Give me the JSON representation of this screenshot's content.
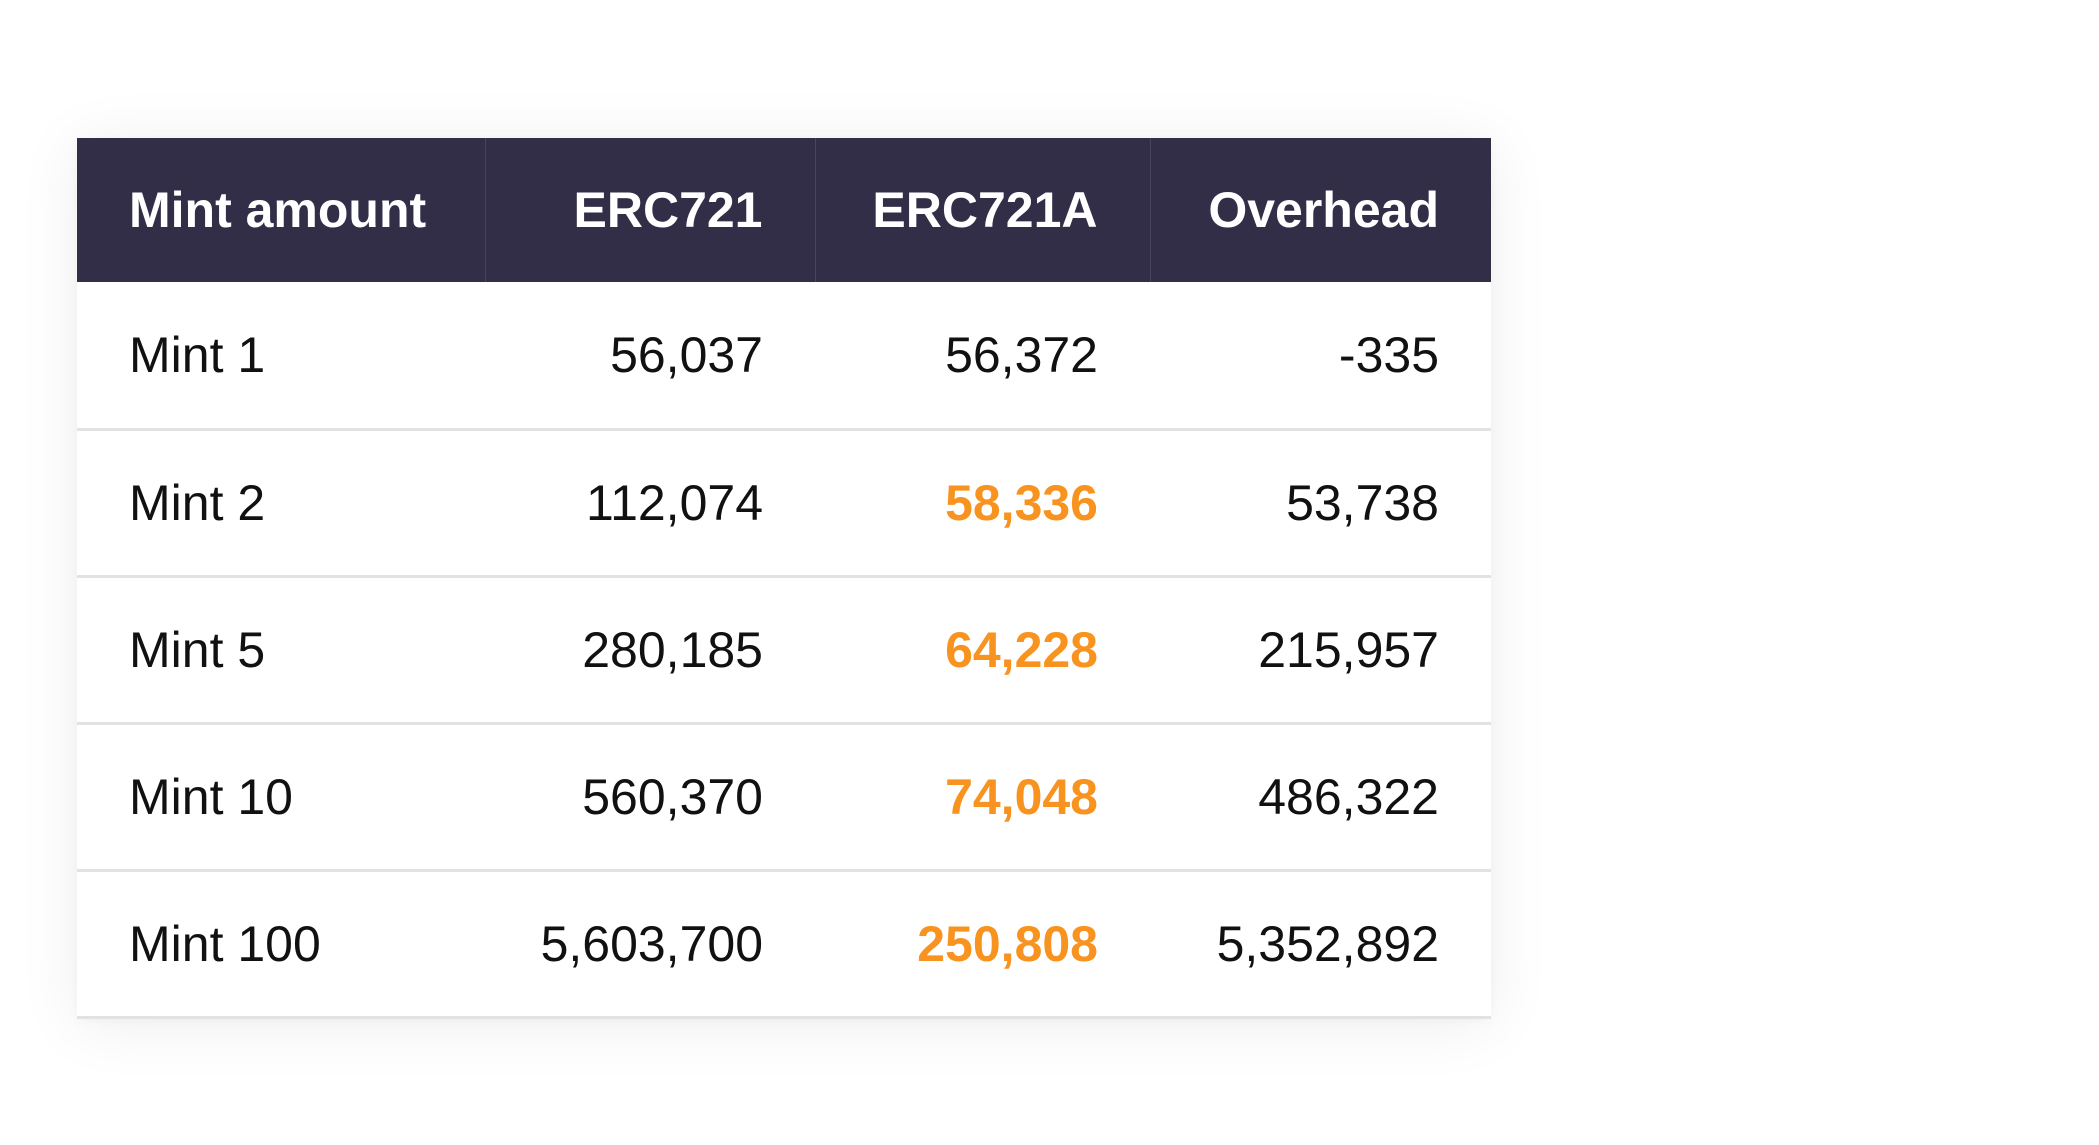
{
  "table": {
    "headers": [
      "Mint amount",
      "ERC721",
      "ERC721A",
      "Overhead"
    ],
    "rows": [
      {
        "label": "Mint 1",
        "erc721": "56,037",
        "erc721a": "56,372",
        "overhead": "-335",
        "highlight": false
      },
      {
        "label": "Mint 2",
        "erc721": "112,074",
        "erc721a": "58,336",
        "overhead": "53,738",
        "highlight": true
      },
      {
        "label": "Mint 5",
        "erc721": "280,185",
        "erc721a": "64,228",
        "overhead": "215,957",
        "highlight": true
      },
      {
        "label": "Mint 10",
        "erc721": "560,370",
        "erc721a": "74,048",
        "overhead": "486,322",
        "highlight": true
      },
      {
        "label": "Mint 100",
        "erc721": "5,603,700",
        "erc721a": "250,808",
        "overhead": "5,352,892",
        "highlight": true
      }
    ]
  },
  "colors": {
    "header_background": "#322e48",
    "header_text": "#ffffff",
    "highlight": "#f7931e",
    "row_divider": "#e2e2e2"
  }
}
